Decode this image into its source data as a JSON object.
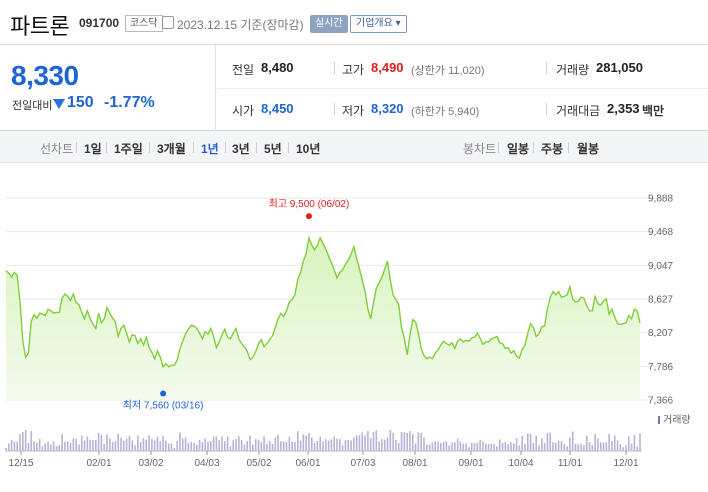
{
  "header": {
    "name": "파트론",
    "code": "091700",
    "market": "코스닥",
    "date": "2023.12.15 기준(장마감)",
    "realtime_label": "실시간",
    "overview_label": "기업개요 ▾"
  },
  "summary": {
    "price": "8,330",
    "change_label": "전일대비",
    "change_value": "150",
    "change_pct": "-1.77%",
    "prev_close_label": "전일",
    "prev_close": "8,480",
    "high_label": "고가",
    "high": "8,490",
    "upper_limit": "(상한가 11,020)",
    "volume_label": "거래량",
    "volume": "281,050",
    "open_label": "시가",
    "open": "8,450",
    "low_label": "저가",
    "low": "8,320",
    "lower_limit": "(하한가 5,940)",
    "amount_label": "거래대금",
    "amount": "2,353",
    "amount_unit": "백만"
  },
  "period_bar": {
    "line_chart_label": "선차트",
    "periods": [
      "1일",
      "1주일",
      "3개월",
      "1년",
      "3년",
      "5년",
      "10년"
    ],
    "active_period": "1년",
    "candle_label": "봉차트",
    "candles": [
      "일봉",
      "주봉",
      "월봉"
    ]
  },
  "colors": {
    "up": "#e0201e",
    "down": "#1f64d6",
    "line": "#7fce3a",
    "fill": "#d8f3bd"
  },
  "chart_data": {
    "type": "area",
    "y_ticks": [
      "9,888",
      "9,468",
      "9,047",
      "8,627",
      "8,207",
      "7,786",
      "7,366"
    ],
    "ylim": [
      7366,
      9888
    ],
    "x_ticks": [
      "12/15",
      "02/01",
      "03/02",
      "04/03",
      "05/02",
      "06/01",
      "07/03",
      "08/01",
      "09/01",
      "10/04",
      "11/01",
      "12/01"
    ],
    "high_annotation": "최고 9,500 (06/02)",
    "low_annotation": "최저 7,560 (03/16)",
    "high_value": 9500,
    "low_value": 7560,
    "volume_label": "거래량",
    "prices": [
      8980,
      8950,
      8900,
      8960,
      8920,
      8600,
      8100,
      7900,
      7950,
      8350,
      8430,
      8390,
      8450,
      8440,
      8420,
      8500,
      8480,
      8450,
      8460,
      8460,
      8640,
      8690,
      8660,
      8610,
      8690,
      8580,
      8560,
      8460,
      8380,
      8480,
      8380,
      8310,
      8260,
      8450,
      8330,
      8380,
      8520,
      8450,
      8390,
      8340,
      8160,
      8260,
      8300,
      8200,
      8090,
      8180,
      8170,
      8070,
      8130,
      8050,
      8150,
      8020,
      7960,
      7880,
      7980,
      7900,
      7780,
      7820,
      7780,
      7800,
      7800,
      7860,
      8000,
      8100,
      8190,
      8250,
      8300,
      8290,
      8260,
      8200,
      8130,
      8220,
      8190,
      8260,
      8160,
      8020,
      8090,
      8180,
      8250,
      8150,
      8130,
      8200,
      8260,
      8130,
      8070,
      8030,
      7970,
      7870,
      7900,
      7970,
      8070,
      8120,
      8030,
      8070,
      8120,
      8170,
      8270,
      8380,
      8450,
      8410,
      8480,
      8590,
      8620,
      8680,
      8870,
      8960,
      9100,
      9200,
      9390,
      9300,
      9240,
      9300,
      9390,
      9320,
      9250,
      9160,
      9080,
      8990,
      8890,
      8960,
      8990,
      9060,
      9110,
      9190,
      9280,
      9130,
      9000,
      8860,
      8720,
      8500,
      8380,
      8580,
      8760,
      8830,
      8900,
      9000,
      9100,
      8860,
      8680,
      8620,
      8560,
      8270,
      8130,
      7930,
      8180,
      8370,
      8340,
      8200,
      8010,
      7920,
      7880,
      7900,
      7880,
      7950,
      7990,
      8050,
      8100,
      8070,
      8050,
      8080,
      8010,
      8100,
      8130,
      8090,
      8110,
      8100,
      8140,
      8150,
      8200,
      8140,
      8060,
      8090,
      8090,
      8130,
      8140,
      8160,
      8080,
      8070,
      8010,
      8020,
      7950,
      7980,
      7910,
      7890,
      8000,
      8050,
      8200,
      8320,
      8270,
      8160,
      8190,
      8280,
      8290,
      8500,
      8650,
      8720,
      8680,
      8720,
      8650,
      8660,
      8680,
      8780,
      8630,
      8590,
      8600,
      8650,
      8640,
      8540,
      8480,
      8480,
      8660,
      8570,
      8550,
      8600,
      8630,
      8440,
      8500,
      8400,
      8320,
      8310,
      8320,
      8330,
      8420,
      8380,
      8500,
      8480,
      8330
    ]
  }
}
